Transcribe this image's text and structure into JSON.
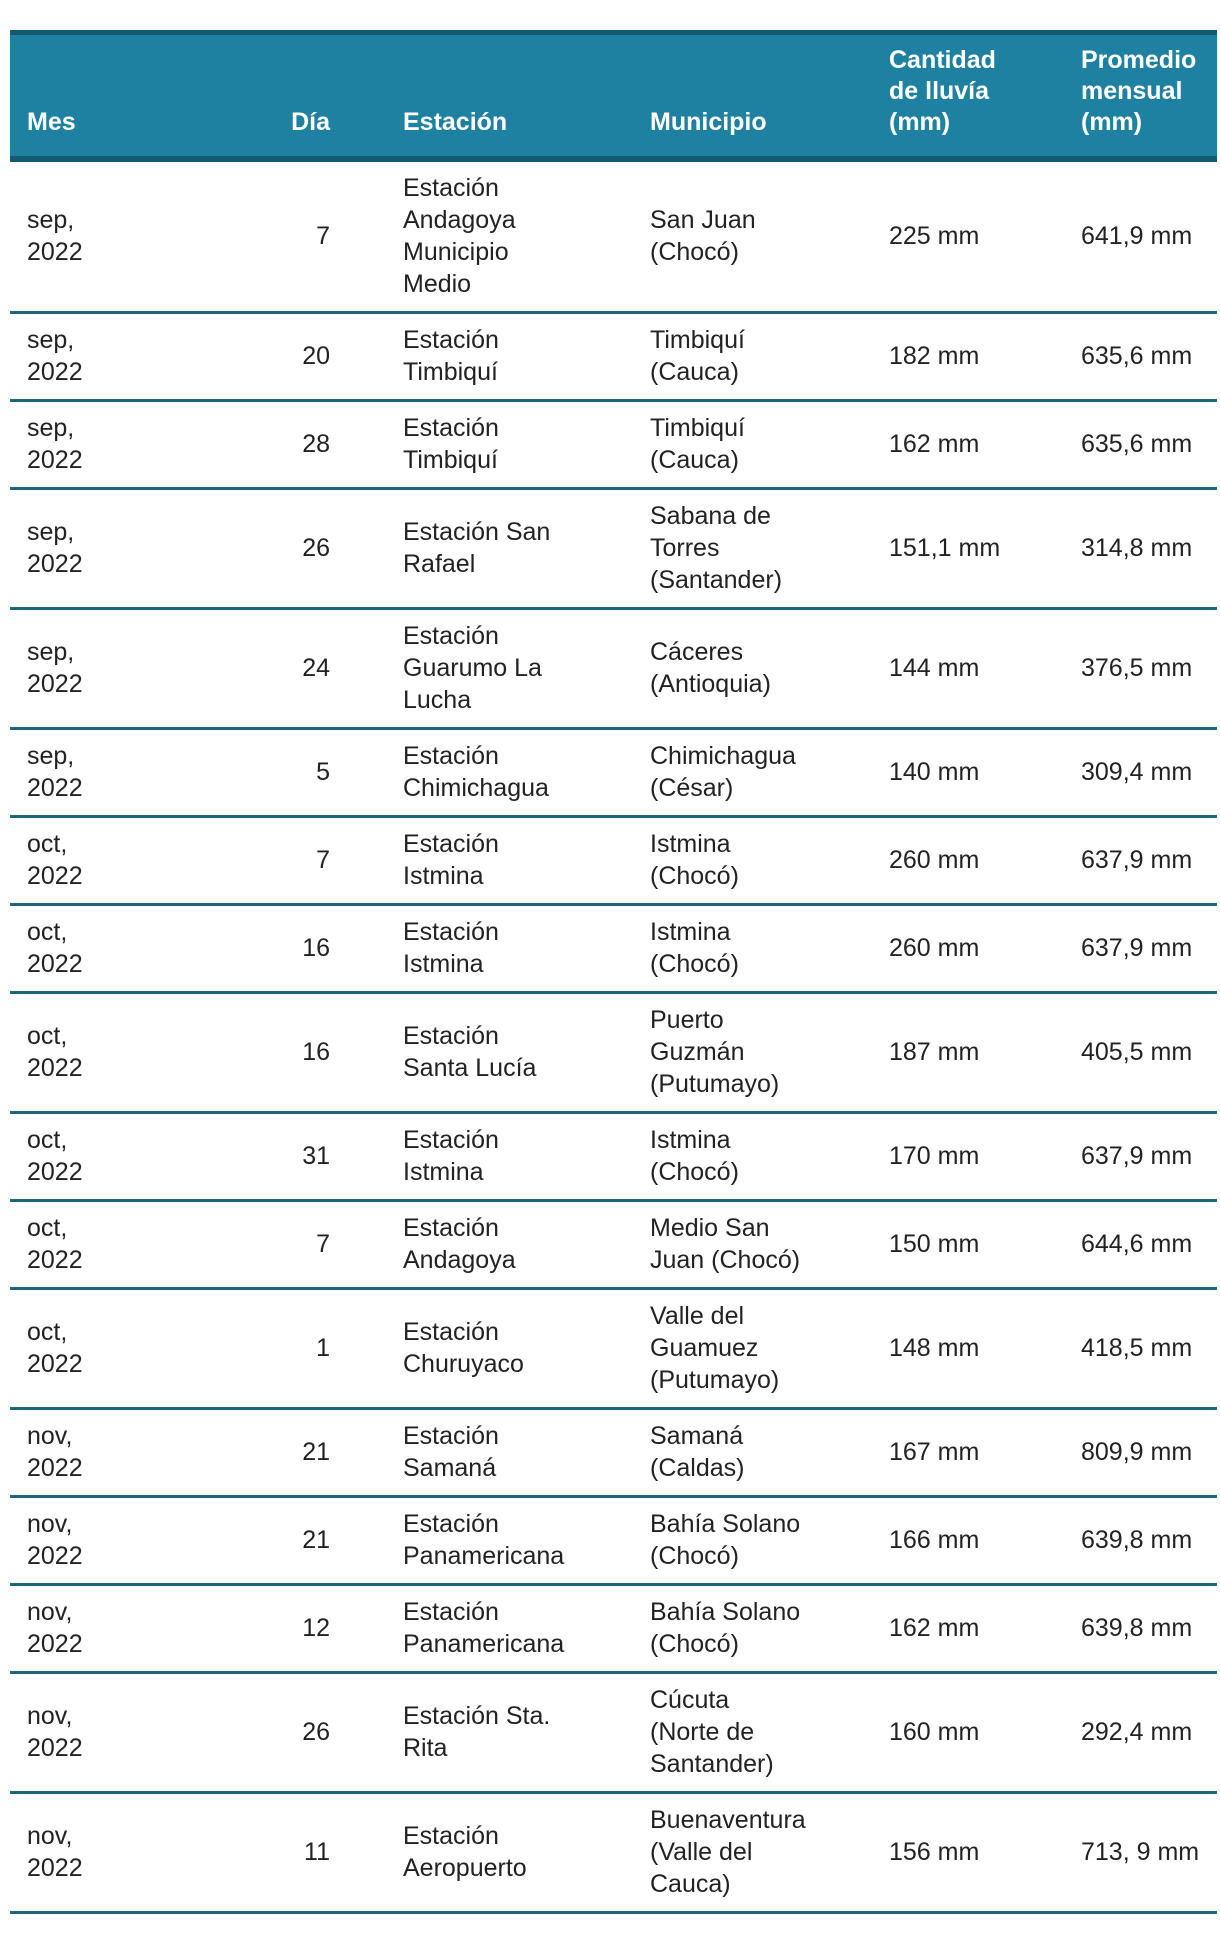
{
  "colors": {
    "header_bg": "#1f81a1",
    "header_border": "#145b72",
    "row_border": "#1a6782"
  },
  "headers": [
    "Mes",
    "Día",
    "Estación",
    "Municipio",
    "Cantidad\nde lluvía\n(mm)",
    "Promedio\nmensual\n(mm)"
  ],
  "rows": [
    [
      "sep,\n2022",
      "7",
      "Estación\nAndagoya\nMunicipio\nMedio",
      "San Juan\n(Chocó)",
      "225 mm",
      "641,9 mm"
    ],
    [
      "sep,\n2022",
      "20",
      "Estación\nTimbiquí",
      "Timbiquí\n(Cauca)",
      "182 mm",
      "635,6 mm"
    ],
    [
      "sep,\n2022",
      "28",
      "Estación\nTimbiquí",
      "Timbiquí\n(Cauca)",
      "162 mm",
      "635,6 mm"
    ],
    [
      "sep,\n2022",
      "26",
      "Estación San\nRafael",
      "Sabana de\nTorres\n(Santander)",
      "151,1 mm",
      "314,8 mm"
    ],
    [
      "sep,\n2022",
      "24",
      "Estación\nGuarumo La\nLucha",
      "Cáceres\n(Antioquia)",
      "144 mm",
      "376,5 mm"
    ],
    [
      "sep,\n2022",
      "5",
      "Estación\nChimichagua",
      "Chimichagua\n(César)",
      "140 mm",
      "309,4 mm"
    ],
    [
      "oct,\n2022",
      "7",
      "Estación\nIstmina",
      "Istmina\n(Chocó)",
      "260 mm",
      "637,9 mm"
    ],
    [
      "oct,\n2022",
      "16",
      "Estación\nIstmina",
      "Istmina\n(Chocó)",
      "260 mm",
      "637,9 mm"
    ],
    [
      "oct,\n2022",
      "16",
      "Estación\nSanta Lucía",
      "Puerto\nGuzmán\n(Putumayo)",
      "187 mm",
      "405,5 mm"
    ],
    [
      "oct,\n2022",
      "31",
      "Estación\nIstmina",
      "Istmina\n(Chocó)",
      "170 mm",
      "637,9 mm"
    ],
    [
      "oct,\n2022",
      "7",
      "Estación\nAndagoya",
      "Medio San\nJuan (Chocó)",
      "150 mm",
      "644,6 mm"
    ],
    [
      "oct,\n2022",
      "1",
      "Estación\nChuruyaco",
      "Valle del\nGuamuez\n(Putumayo)",
      "148 mm",
      "418,5 mm"
    ],
    [
      "nov,\n2022",
      "21",
      "Estación\nSamaná",
      "Samaná\n(Caldas)",
      "167 mm",
      "809,9 mm"
    ],
    [
      "nov,\n2022",
      "21",
      "Estación\nPanamericana",
      "Bahía Solano\n(Chocó)",
      "166 mm",
      "639,8 mm"
    ],
    [
      "nov,\n2022",
      "12",
      "Estación\nPanamericana",
      "Bahía Solano\n(Chocó)",
      "162 mm",
      "639,8 mm"
    ],
    [
      "nov,\n2022",
      "26",
      "Estación Sta.\nRita",
      "Cúcuta\n(Norte de\nSantander)",
      "160 mm",
      "292,4 mm"
    ],
    [
      "nov,\n2022",
      "11",
      "Estación\nAeropuerto",
      "Buenaventura\n(Valle del\nCauca)",
      "156 mm",
      "713, 9 mm"
    ]
  ]
}
